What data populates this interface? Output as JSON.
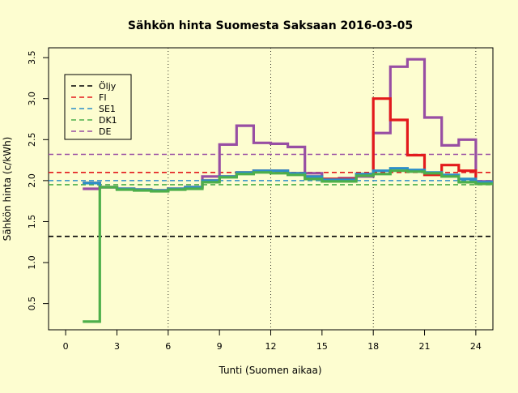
{
  "colors": {
    "background": "#fdfdd0",
    "oljy": "#000000",
    "fi": "#e31a1c",
    "se1": "#2c8fc9",
    "dk1": "#4daf4a",
    "de": "#984ea3"
  },
  "chart_data": {
    "type": "line",
    "title": "Sähkön hinta Suomesta Saksaan 2016-03-05",
    "xlabel": "Tunti (Suomen aikaa)",
    "ylabel": "Sähkön hinta (c/kWh)",
    "xlim": [
      -1,
      25
    ],
    "ylim": [
      0.18,
      3.62
    ],
    "xticks": [
      0,
      3,
      6,
      9,
      12,
      15,
      18,
      21,
      24
    ],
    "yticks": [
      0.5,
      1.0,
      1.5,
      2.0,
      2.5,
      3.0,
      3.5
    ],
    "ytick_labels": [
      "0.5",
      "1.0",
      "1.5",
      "2.0",
      "2.5",
      "3.0",
      "3.5"
    ],
    "vertical_grid_x": [
      6,
      12,
      18,
      24
    ],
    "grid": "dotted vertical lines at 6, 12, 18, 24",
    "legend_position": "top-left",
    "hours": [
      1,
      2,
      3,
      4,
      5,
      6,
      7,
      8,
      9,
      10,
      11,
      12,
      13,
      14,
      15,
      16,
      17,
      18,
      19,
      20,
      21,
      22,
      23,
      24
    ],
    "step_series": [
      {
        "key": "de",
        "values": [
          1.9,
          1.92,
          1.9,
          1.89,
          1.88,
          1.9,
          1.92,
          2.05,
          2.44,
          2.67,
          2.46,
          2.45,
          2.41,
          2.09,
          2.02,
          2.03,
          2.05,
          2.58,
          3.39,
          3.48,
          2.77,
          2.43,
          2.5,
          1.99
        ]
      },
      {
        "key": "fi",
        "values": [
          1.97,
          1.92,
          1.9,
          1.89,
          1.88,
          1.9,
          1.92,
          2.0,
          2.05,
          2.1,
          2.12,
          2.12,
          2.09,
          2.05,
          2.02,
          2.02,
          2.08,
          3.0,
          2.74,
          2.31,
          2.07,
          2.19,
          2.12,
          1.97
        ]
      },
      {
        "key": "se1",
        "values": [
          1.97,
          1.92,
          1.9,
          1.89,
          1.88,
          1.9,
          1.92,
          2.0,
          2.05,
          2.1,
          2.12,
          2.12,
          2.09,
          2.05,
          2.01,
          2.01,
          2.08,
          2.12,
          2.15,
          2.13,
          2.1,
          2.07,
          2.02,
          1.98
        ]
      },
      {
        "key": "dk1",
        "values": [
          0.28,
          1.92,
          1.89,
          1.88,
          1.87,
          1.89,
          1.9,
          1.98,
          2.04,
          2.08,
          2.1,
          2.09,
          2.07,
          2.02,
          1.99,
          1.99,
          2.06,
          2.08,
          2.12,
          2.11,
          2.09,
          2.05,
          1.98,
          1.96
        ]
      }
    ],
    "reference_lines": [
      {
        "key": "oljy",
        "value": 1.32
      },
      {
        "key": "fi",
        "value": 2.1
      },
      {
        "key": "se1",
        "value": 2.0
      },
      {
        "key": "dk1",
        "value": 1.95
      },
      {
        "key": "de",
        "value": 2.32
      }
    ],
    "legend": [
      {
        "key": "oljy",
        "label": "Öljy"
      },
      {
        "key": "fi",
        "label": "FI"
      },
      {
        "key": "se1",
        "label": "SE1"
      },
      {
        "key": "dk1",
        "label": "DK1"
      },
      {
        "key": "de",
        "label": "DE"
      }
    ]
  }
}
